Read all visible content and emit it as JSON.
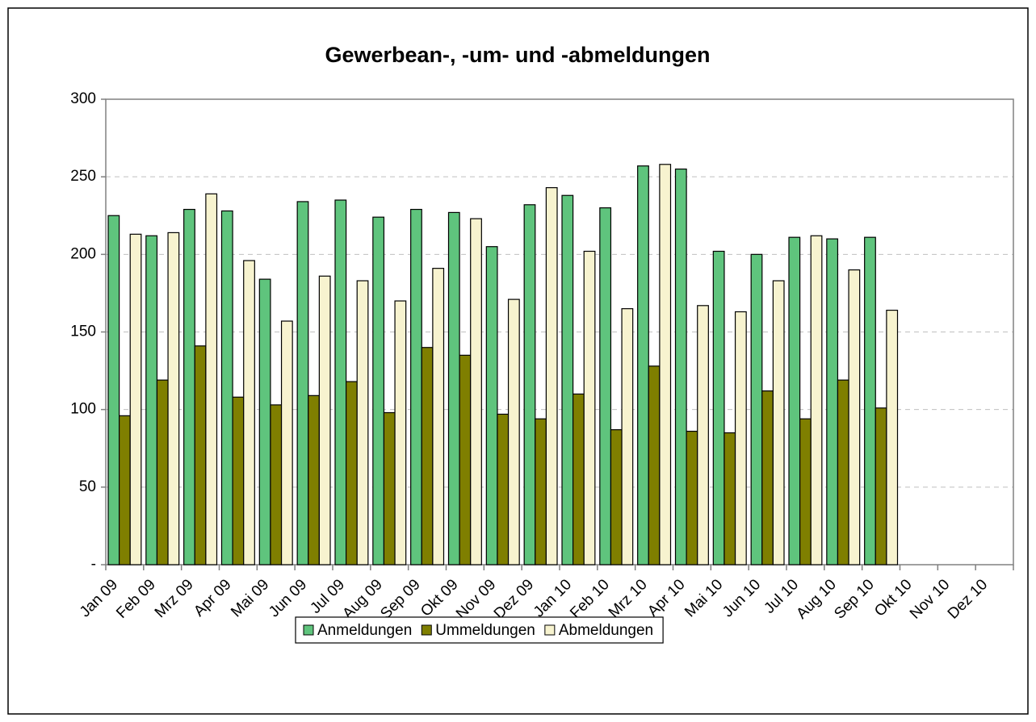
{
  "chart_data": {
    "type": "bar",
    "title": "Gewerbean-, -um- und -abmeldungen",
    "categories": [
      "Jan 09",
      "Feb 09",
      "Mrz 09",
      "Apr 09",
      "Mai 09",
      "Jun 09",
      "Jul 09",
      "Aug 09",
      "Sep 09",
      "Okt 09",
      "Nov 09",
      "Dez 09",
      "Jan 10",
      "Feb 10",
      "Mrz 10",
      "Apr 10",
      "Mai 10",
      "Jun 10",
      "Jul 10",
      "Aug 10",
      "Sep 10",
      "Okt 10",
      "Nov 10",
      "Dez 10"
    ],
    "series": [
      {
        "name": "Anmeldungen",
        "color": "#5fc47d",
        "values": [
          225,
          212,
          229,
          228,
          184,
          234,
          235,
          224,
          229,
          227,
          205,
          232,
          238,
          230,
          257,
          255,
          202,
          200,
          211,
          210,
          211,
          null,
          null,
          null
        ]
      },
      {
        "name": "Ummeldungen",
        "color": "#7f7f00",
        "values": [
          96,
          119,
          141,
          108,
          103,
          109,
          118,
          98,
          140,
          135,
          97,
          94,
          110,
          87,
          128,
          86,
          85,
          112,
          94,
          119,
          101,
          null,
          null,
          null
        ]
      },
      {
        "name": "Abmeldungen",
        "color": "#f7f3cf",
        "values": [
          213,
          214,
          239,
          196,
          157,
          186,
          183,
          170,
          191,
          223,
          171,
          243,
          202,
          165,
          258,
          167,
          163,
          183,
          212,
          190,
          164,
          null,
          null,
          null
        ]
      }
    ],
    "ylim": [
      0,
      300
    ],
    "yticks": [
      {
        "value": 0,
        "label": "-"
      },
      50,
      100,
      150,
      200,
      250,
      300
    ],
    "grid": true,
    "legend": "bottom"
  }
}
